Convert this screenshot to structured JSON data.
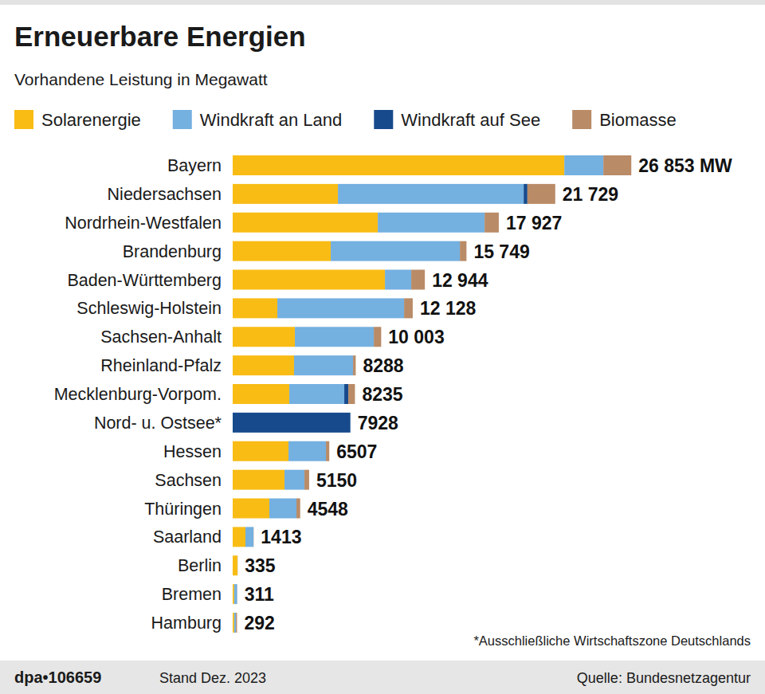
{
  "chart_data": {
    "type": "bar",
    "orientation": "horizontal",
    "stacked": true,
    "data_labels": false,
    "tick_labels": false,
    "legend": "top",
    "grid": false,
    "title": "Erneuerbare Energien",
    "subtitle": "Vorhandene Leistung in Megawatt",
    "categories": [
      "Bayern",
      "Niedersachsen",
      "Nordrhein-Westfalen",
      "Brandenburg",
      "Baden-Württemberg",
      "Schleswig-Holstein",
      "Sachsen-Anhalt",
      "Rheinland-Pfalz",
      "Mecklenburg-Vorpom.",
      "Nord- u. Ostsee*",
      "Hessen",
      "Sachsen",
      "Thüringen",
      "Saarland",
      "Berlin",
      "Bremen",
      "Hamburg"
    ],
    "series": [
      {
        "name": "Solarenergie",
        "color": "#f9bc15",
        "values": [
          22340,
          7090,
          9774,
          6605,
          10257,
          3007,
          4189,
          4135,
          3813,
          0,
          3759,
          3491,
          2470,
          859,
          320,
          100,
          100
        ]
      },
      {
        "name": "Windkraft an Land",
        "color": "#74b0e0",
        "values": [
          2630,
          12513,
          7196,
          8700,
          1772,
          8539,
          5317,
          3974,
          3705,
          0,
          2524,
          1343,
          1826,
          537,
          5,
          200,
          120
        ]
      },
      {
        "name": "Windkraft auf See",
        "color": "#174a8c",
        "values": [
          0,
          250,
          0,
          0,
          0,
          0,
          0,
          0,
          270,
          7928,
          0,
          0,
          0,
          0,
          0,
          0,
          0
        ]
      },
      {
        "name": "Biomasse",
        "color": "#b98b67",
        "values": [
          1883,
          1876,
          957,
          444,
          915,
          582,
          497,
          179,
          447,
          0,
          224,
          316,
          252,
          17,
          10,
          11,
          72
        ]
      }
    ],
    "totals": [
      26853,
      21729,
      17927,
      15749,
      12944,
      12128,
      10003,
      8288,
      8235,
      7928,
      6507,
      5150,
      4548,
      1413,
      335,
      311,
      292
    ],
    "total_labels": [
      "26 853 MW",
      "21 729",
      "17 927",
      "15 749",
      "12 944",
      "12 128",
      "10 003",
      "8288",
      "8235",
      "7928",
      "6507",
      "5150",
      "4548",
      "1413",
      "335",
      "311",
      "292"
    ],
    "xlim": [
      0,
      35000
    ],
    "footnote": "*Ausschließliche Wirtschaftszone Deutschlands",
    "credit": "dpa•106659",
    "date_note": "Stand Dez. 2023",
    "source": "Quelle: Bundesnetzagentur"
  }
}
